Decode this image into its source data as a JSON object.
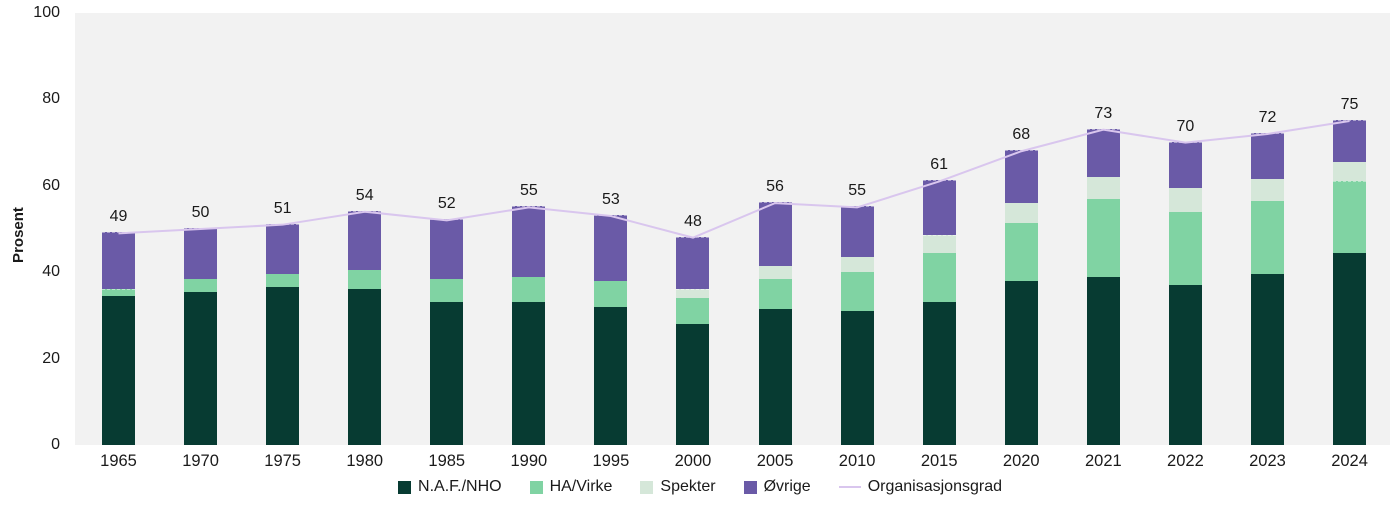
{
  "chart_data": {
    "type": "bar",
    "stacked": true,
    "title": "",
    "ylabel": "Prosent",
    "xlabel": "",
    "ylim": [
      0,
      100
    ],
    "yticks": [
      0,
      20,
      40,
      60,
      80,
      100
    ],
    "grid": false,
    "legend_position": "bottom",
    "plot_bg": "#f2f2f2",
    "text_color": "#1a1a1a",
    "categories": [
      "1965",
      "1970",
      "1975",
      "1980",
      "1985",
      "1990",
      "1995",
      "2000",
      "2005",
      "2010",
      "2015",
      "2020",
      "2021",
      "2022",
      "2023",
      "2024"
    ],
    "series": [
      {
        "name": "N.A.F./NHO",
        "color": "#073b32",
        "values": [
          34.5,
          35.5,
          36.5,
          36,
          33,
          33,
          32,
          28,
          31.5,
          31,
          33,
          38,
          39,
          37,
          39.5,
          44.5
        ]
      },
      {
        "name": "HA/Virke",
        "color": "#80d3a3",
        "values": [
          1.5,
          3,
          3,
          4.5,
          5.5,
          6,
          6,
          6,
          7,
          9,
          11.5,
          13.5,
          18,
          17,
          17,
          16.5
        ]
      },
      {
        "name": "Spekter",
        "color": "#d5e7d9",
        "values": [
          0,
          0,
          0,
          0,
          0,
          0,
          0,
          2,
          3,
          3.5,
          4,
          4.5,
          5,
          5.5,
          5,
          4.5
        ]
      },
      {
        "name": "Øvrige",
        "color": "#6a5aa7",
        "values": [
          13,
          11.5,
          11.5,
          13.5,
          13.5,
          16,
          15,
          12,
          14.5,
          11.5,
          12.5,
          12,
          11,
          10.5,
          10.5,
          9.5
        ]
      }
    ],
    "line_series": {
      "name": "Organisasjonsgrad",
      "color": "#d9c6ee",
      "values": [
        49,
        50,
        51,
        54,
        52,
        55,
        53,
        48,
        56,
        55,
        61,
        68,
        73,
        70,
        72,
        75
      ]
    },
    "data_labels": [
      "49",
      "50",
      "51",
      "54",
      "52",
      "55",
      "53",
      "48",
      "56",
      "55",
      "61",
      "68",
      "73",
      "70",
      "72",
      "75"
    ]
  }
}
